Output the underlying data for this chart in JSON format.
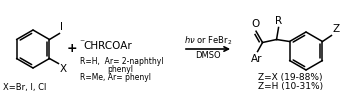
{
  "background_color": "#ffffff",
  "fig_width": 3.45,
  "fig_height": 1.01,
  "dpi": 100,
  "substituent_line1": "R=H,  Ar= 2-naphthyl",
  "substituent_line2": "phenyl",
  "substituent_line3": "R=Me, Ar= phenyl",
  "label_x": "X=Br, I, Cl",
  "yield_line1": "Z=X (19-88%)",
  "yield_line2": "Z=H (10-31%)"
}
